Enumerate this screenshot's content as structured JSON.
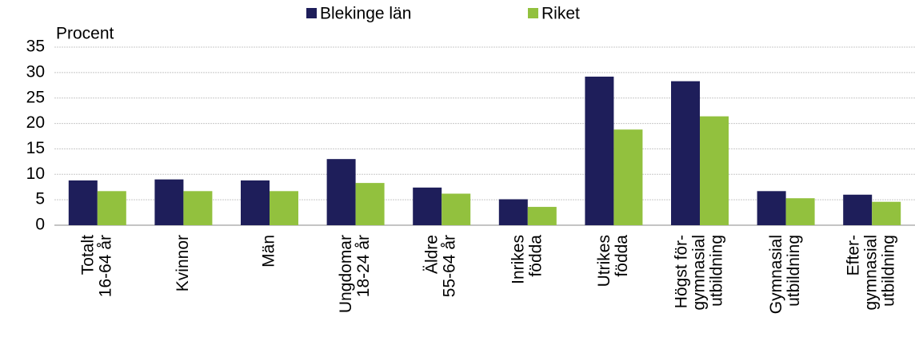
{
  "chart_data": {
    "type": "bar",
    "y_label": "Procent",
    "categories": [
      [
        "Totalt",
        "16-64 år"
      ],
      [
        "Kvinnor"
      ],
      [
        "Män"
      ],
      [
        "Ungdomar",
        "18-24 år"
      ],
      [
        "Äldre",
        "55-64 år"
      ],
      [
        "Inrikes",
        "födda"
      ],
      [
        "Utrikes",
        "födda"
      ],
      [
        "Högst för-",
        "gymnasial",
        "utbildning"
      ],
      [
        "Gymnasial",
        "utbildning"
      ],
      [
        "Efter-",
        "gymnasial",
        "utbildning"
      ]
    ],
    "series": [
      {
        "name": "Blekinge län",
        "color": "#1e1e5a",
        "values": [
          8.8,
          9.0,
          8.8,
          13.0,
          7.4,
          5.1,
          29.2,
          28.3,
          6.7,
          6.0
        ]
      },
      {
        "name": "Riket",
        "color": "#92c13e",
        "values": [
          6.7,
          6.7,
          6.7,
          8.3,
          6.2,
          3.6,
          18.8,
          21.4,
          5.3,
          4.6
        ]
      }
    ],
    "ylim": [
      0,
      35
    ],
    "yticks": [
      0,
      5,
      10,
      15,
      20,
      25,
      30,
      35
    ],
    "grid": true
  }
}
